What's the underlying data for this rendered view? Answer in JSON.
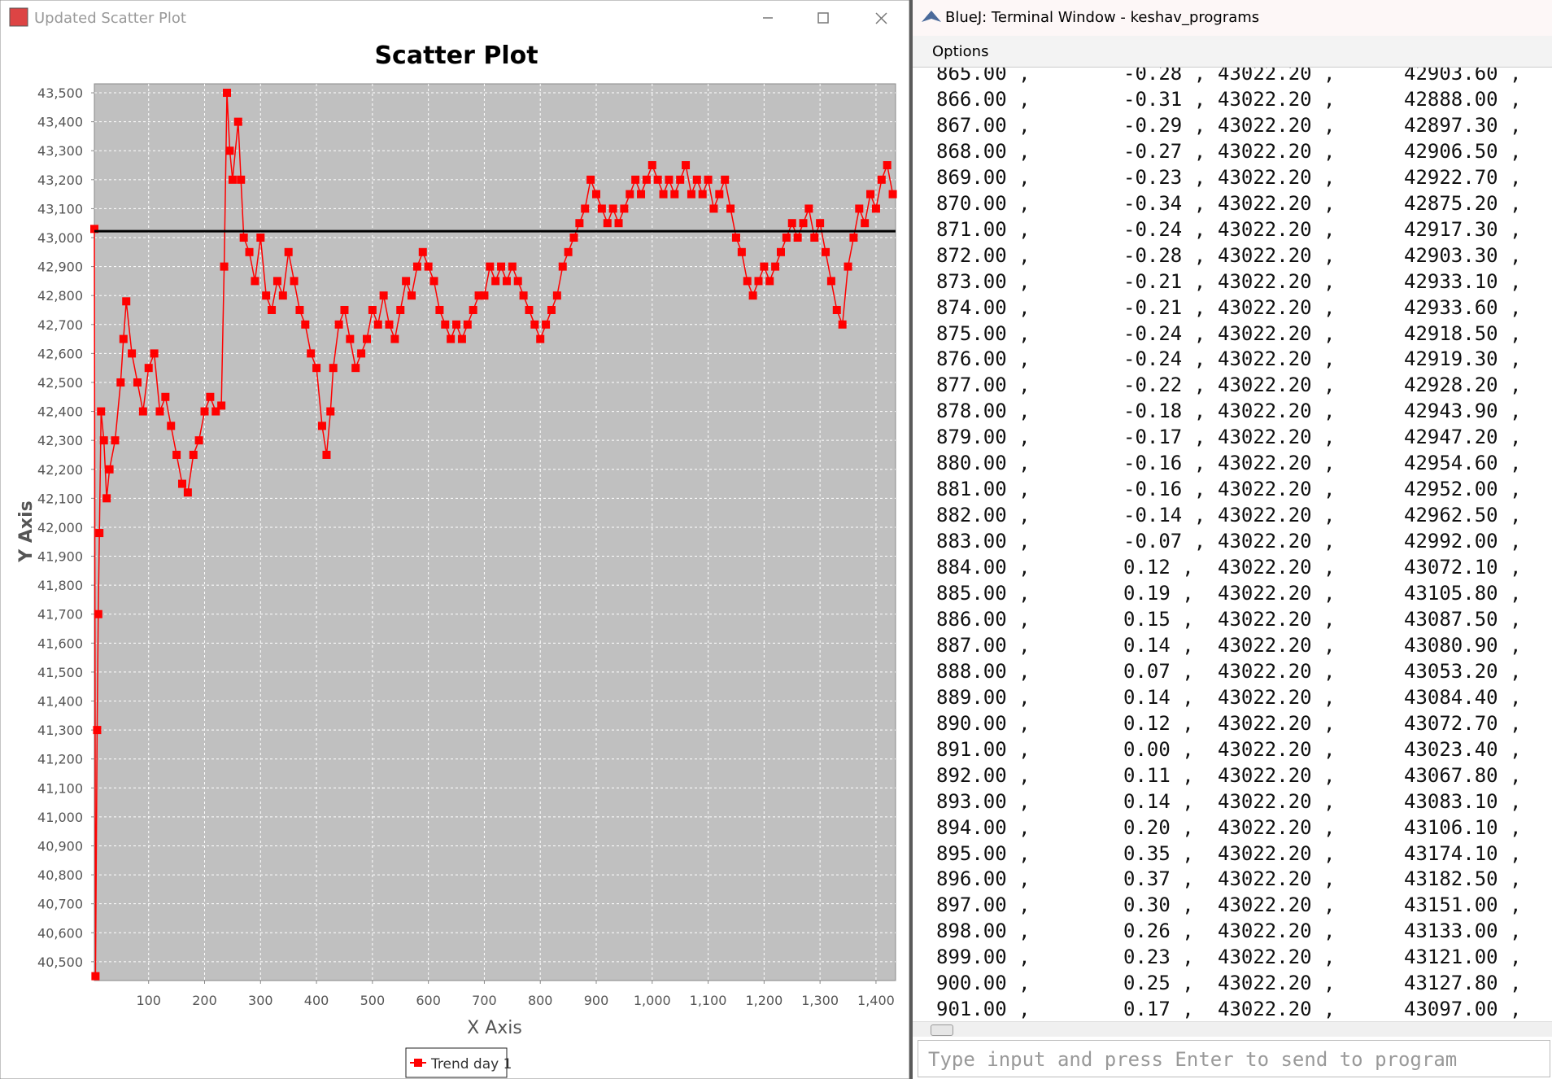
{
  "chart_window": {
    "title": "Updated Scatter Plot"
  },
  "chart_data": {
    "type": "scatter",
    "title": "Scatter Plot",
    "x_label": "X Axis",
    "y_label": "Y Axis",
    "xlim": [
      3,
      1435
    ],
    "ylim": [
      40435,
      43531
    ],
    "grid": true,
    "legend": "bottom",
    "xticks": [
      100,
      200,
      300,
      400,
      500,
      600,
      700,
      800,
      900,
      {
        "value": 1000,
        "label": "1,000"
      },
      {
        "value": 1100,
        "label": "1,100"
      },
      {
        "value": 1200,
        "label": "1,200"
      },
      {
        "value": 1300,
        "label": "1,300"
      },
      {
        "value": 1400,
        "label": "1,400"
      }
    ],
    "yticks": [
      {
        "value": 40500,
        "label": "40,500"
      },
      {
        "value": 40600,
        "label": "40,600"
      },
      {
        "value": 40700,
        "label": "40,700"
      },
      {
        "value": 40800,
        "label": "40,800"
      },
      {
        "value": 40900,
        "label": "40,900"
      },
      {
        "value": 41000,
        "label": "41,000"
      },
      {
        "value": 41100,
        "label": "41,100"
      },
      {
        "value": 41200,
        "label": "41,200"
      },
      {
        "value": 41300,
        "label": "41,300"
      },
      {
        "value": 41400,
        "label": "41,400"
      },
      {
        "value": 41500,
        "label": "41,500"
      },
      {
        "value": 41600,
        "label": "41,600"
      },
      {
        "value": 41700,
        "label": "41,700"
      },
      {
        "value": 41800,
        "label": "41,800"
      },
      {
        "value": 41900,
        "label": "41,900"
      },
      {
        "value": 42000,
        "label": "42,000"
      },
      {
        "value": 42100,
        "label": "42,100"
      },
      {
        "value": 42200,
        "label": "42,200"
      },
      {
        "value": 42300,
        "label": "42,300"
      },
      {
        "value": 42400,
        "label": "42,400"
      },
      {
        "value": 42500,
        "label": "42,500"
      },
      {
        "value": 42600,
        "label": "42,600"
      },
      {
        "value": 42700,
        "label": "42,700"
      },
      {
        "value": 42800,
        "label": "42,800"
      },
      {
        "value": 42900,
        "label": "42,900"
      },
      {
        "value": 43000,
        "label": "43,000"
      },
      {
        "value": 43100,
        "label": "43,100"
      },
      {
        "value": 43200,
        "label": "43,200"
      },
      {
        "value": 43300,
        "label": "43,300"
      },
      {
        "value": 43400,
        "label": "43,400"
      },
      {
        "value": 43500,
        "label": "43,500"
      }
    ],
    "reference_line": {
      "value": 43022.2,
      "color": "#000000"
    },
    "series": [
      {
        "name": "Trend day 1",
        "color": "#ff0000",
        "x": [
          3,
          5,
          8,
          10,
          12,
          15,
          20,
          25,
          30,
          40,
          50,
          55,
          60,
          70,
          80,
          90,
          100,
          110,
          120,
          130,
          140,
          150,
          160,
          170,
          180,
          190,
          200,
          210,
          220,
          230,
          235,
          240,
          245,
          250,
          260,
          265,
          270,
          280,
          290,
          300,
          310,
          320,
          330,
          340,
          350,
          360,
          370,
          380,
          390,
          400,
          410,
          418,
          425,
          430,
          440,
          450,
          460,
          470,
          480,
          490,
          500,
          510,
          520,
          530,
          540,
          550,
          560,
          570,
          580,
          590,
          600,
          610,
          620,
          630,
          640,
          650,
          660,
          670,
          680,
          690,
          700,
          710,
          720,
          730,
          740,
          750,
          760,
          770,
          780,
          790,
          800,
          810,
          820,
          830,
          840,
          850,
          860,
          870,
          880,
          890,
          900,
          910,
          920,
          930,
          940,
          950,
          960,
          970,
          980,
          990,
          1000,
          1010,
          1020,
          1030,
          1040,
          1050,
          1060,
          1070,
          1080,
          1090,
          1100,
          1110,
          1120,
          1130,
          1140,
          1150,
          1160,
          1170,
          1180,
          1190,
          1200,
          1210,
          1220,
          1230,
          1240,
          1250,
          1260,
          1270,
          1280,
          1290,
          1300,
          1310,
          1320,
          1330,
          1340,
          1350,
          1360,
          1370,
          1380,
          1390,
          1400,
          1410,
          1420,
          1430
        ],
        "values": [
          43030,
          40450,
          41300,
          41700,
          41980,
          42400,
          42300,
          42100,
          42200,
          42300,
          42500,
          42650,
          42780,
          42600,
          42500,
          42400,
          42550,
          42600,
          42400,
          42450,
          42350,
          42250,
          42150,
          42120,
          42250,
          42300,
          42400,
          42450,
          42400,
          42420,
          42900,
          43500,
          43300,
          43200,
          43400,
          43200,
          43000,
          42950,
          42850,
          43000,
          42800,
          42750,
          42850,
          42800,
          42950,
          42850,
          42750,
          42700,
          42600,
          42550,
          42350,
          42250,
          42400,
          42550,
          42700,
          42750,
          42650,
          42550,
          42600,
          42650,
          42750,
          42700,
          42800,
          42700,
          42650,
          42750,
          42850,
          42800,
          42900,
          42950,
          42900,
          42850,
          42750,
          42700,
          42650,
          42700,
          42650,
          42700,
          42750,
          42800,
          42800,
          42900,
          42850,
          42900,
          42850,
          42900,
          42850,
          42800,
          42750,
          42700,
          42650,
          42700,
          42750,
          42800,
          42900,
          42950,
          43000,
          43050,
          43100,
          43200,
          43150,
          43100,
          43050,
          43100,
          43050,
          43100,
          43150,
          43200,
          43150,
          43200,
          43250,
          43200,
          43150,
          43200,
          43150,
          43200,
          43250,
          43150,
          43200,
          43150,
          43200,
          43100,
          43150,
          43200,
          43100,
          43000,
          42950,
          42850,
          42800,
          42850,
          42900,
          42850,
          42900,
          42950,
          43000,
          43050,
          43000,
          43050,
          43100,
          43000,
          43050,
          42950,
          42850,
          42750,
          42700,
          42900,
          43000,
          43100,
          43050,
          43150,
          43100,
          43200,
          43250,
          43150
        ]
      }
    ]
  },
  "terminal": {
    "title": "BlueJ: Terminal Window - keshav_programs",
    "menu": [
      "Options"
    ],
    "rows": [
      [
        "865.00 ,",
        "-0.28 ,",
        "43022.20 ,",
        "42903.60 ,"
      ],
      [
        "866.00 ,",
        "-0.31 ,",
        "43022.20 ,",
        "42888.00 ,"
      ],
      [
        "867.00 ,",
        "-0.29 ,",
        "43022.20 ,",
        "42897.30 ,"
      ],
      [
        "868.00 ,",
        "-0.27 ,",
        "43022.20 ,",
        "42906.50 ,"
      ],
      [
        "869.00 ,",
        "-0.23 ,",
        "43022.20 ,",
        "42922.70 ,"
      ],
      [
        "870.00 ,",
        "-0.34 ,",
        "43022.20 ,",
        "42875.20 ,"
      ],
      [
        "871.00 ,",
        "-0.24 ,",
        "43022.20 ,",
        "42917.30 ,"
      ],
      [
        "872.00 ,",
        "-0.28 ,",
        "43022.20 ,",
        "42903.30 ,"
      ],
      [
        "873.00 ,",
        "-0.21 ,",
        "43022.20 ,",
        "42933.10 ,"
      ],
      [
        "874.00 ,",
        "-0.21 ,",
        "43022.20 ,",
        "42933.60 ,"
      ],
      [
        "875.00 ,",
        "-0.24 ,",
        "43022.20 ,",
        "42918.50 ,"
      ],
      [
        "876.00 ,",
        "-0.24 ,",
        "43022.20 ,",
        "42919.30 ,"
      ],
      [
        "877.00 ,",
        "-0.22 ,",
        "43022.20 ,",
        "42928.20 ,"
      ],
      [
        "878.00 ,",
        "-0.18 ,",
        "43022.20 ,",
        "42943.90 ,"
      ],
      [
        "879.00 ,",
        "-0.17 ,",
        "43022.20 ,",
        "42947.20 ,"
      ],
      [
        "880.00 ,",
        "-0.16 ,",
        "43022.20 ,",
        "42954.60 ,"
      ],
      [
        "881.00 ,",
        "-0.16 ,",
        "43022.20 ,",
        "42952.00 ,"
      ],
      [
        "882.00 ,",
        "-0.14 ,",
        "43022.20 ,",
        "42962.50 ,"
      ],
      [
        "883.00 ,",
        "-0.07 ,",
        "43022.20 ,",
        "42992.00 ,"
      ],
      [
        "884.00 ,",
        "0.12 ,",
        "43022.20 ,",
        "43072.10 ,"
      ],
      [
        "885.00 ,",
        "0.19 ,",
        "43022.20 ,",
        "43105.80 ,"
      ],
      [
        "886.00 ,",
        "0.15 ,",
        "43022.20 ,",
        "43087.50 ,"
      ],
      [
        "887.00 ,",
        "0.14 ,",
        "43022.20 ,",
        "43080.90 ,"
      ],
      [
        "888.00 ,",
        "0.07 ,",
        "43022.20 ,",
        "43053.20 ,"
      ],
      [
        "889.00 ,",
        "0.14 ,",
        "43022.20 ,",
        "43084.40 ,"
      ],
      [
        "890.00 ,",
        "0.12 ,",
        "43022.20 ,",
        "43072.70 ,"
      ],
      [
        "891.00 ,",
        "0.00 ,",
        "43022.20 ,",
        "43023.40 ,"
      ],
      [
        "892.00 ,",
        "0.11 ,",
        "43022.20 ,",
        "43067.80 ,"
      ],
      [
        "893.00 ,",
        "0.14 ,",
        "43022.20 ,",
        "43083.10 ,"
      ],
      [
        "894.00 ,",
        "0.20 ,",
        "43022.20 ,",
        "43106.10 ,"
      ],
      [
        "895.00 ,",
        "0.35 ,",
        "43022.20 ,",
        "43174.10 ,"
      ],
      [
        "896.00 ,",
        "0.37 ,",
        "43022.20 ,",
        "43182.50 ,"
      ],
      [
        "897.00 ,",
        "0.30 ,",
        "43022.20 ,",
        "43151.00 ,"
      ],
      [
        "898.00 ,",
        "0.26 ,",
        "43022.20 ,",
        "43133.00 ,"
      ],
      [
        "899.00 ,",
        "0.23 ,",
        "43022.20 ,",
        "43121.00 ,"
      ],
      [
        "900.00 ,",
        "0.25 ,",
        "43022.20 ,",
        "43127.80 ,"
      ],
      [
        "901.00 ,",
        "0.17 ,",
        "43022.20 ,",
        "43097.00 ,"
      ]
    ],
    "input_placeholder": "Type input and press Enter to send to program"
  }
}
